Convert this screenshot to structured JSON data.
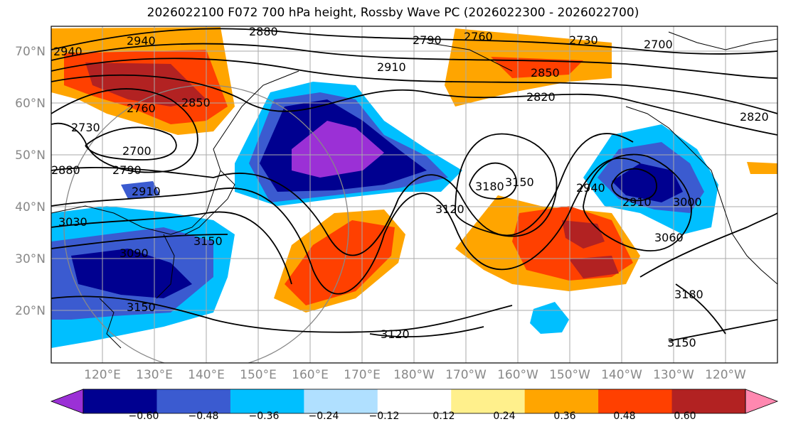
{
  "title": "2026022100 F072 700 hPa height, Rossby Wave PC (2026022300 - 2026022700)",
  "lat_labels": [
    "70°N",
    "60°N",
    "50°N",
    "40°N",
    "30°N",
    "20°N"
  ],
  "lon_labels": [
    "120°E",
    "130°E",
    "140°E",
    "150°E",
    "160°E",
    "170°E",
    "180°W",
    "170°W",
    "160°W",
    "150°W",
    "140°W",
    "130°W",
    "120°W"
  ],
  "contour_labels": [
    "2880",
    "2940",
    "2790",
    "2760",
    "2730",
    "2700",
    "2940",
    "2910",
    "2850",
    "2850",
    "2760",
    "2820",
    "2730",
    "2700",
    "2880",
    "2790",
    "2820",
    "2910",
    "3030",
    "3090",
    "3150",
    "3150",
    "3180",
    "3150",
    "3120",
    "2940",
    "2910",
    "3000",
    "3060",
    "3180",
    "3150",
    "3120"
  ],
  "colorbar": {
    "colors": [
      "#9b30d6",
      "#000090",
      "#3b5bd0",
      "#00bfff",
      "#b0e0ff",
      "#ffffff",
      "#fff08c",
      "#ffa500",
      "#ff4000",
      "#b22222",
      "#ff88b0"
    ],
    "tick_labels": [
      "−0.60",
      "−0.48",
      "−0.36",
      "−0.24",
      "−0.12",
      "0.12",
      "0.24",
      "0.36",
      "0.48",
      "0.60"
    ]
  }
}
